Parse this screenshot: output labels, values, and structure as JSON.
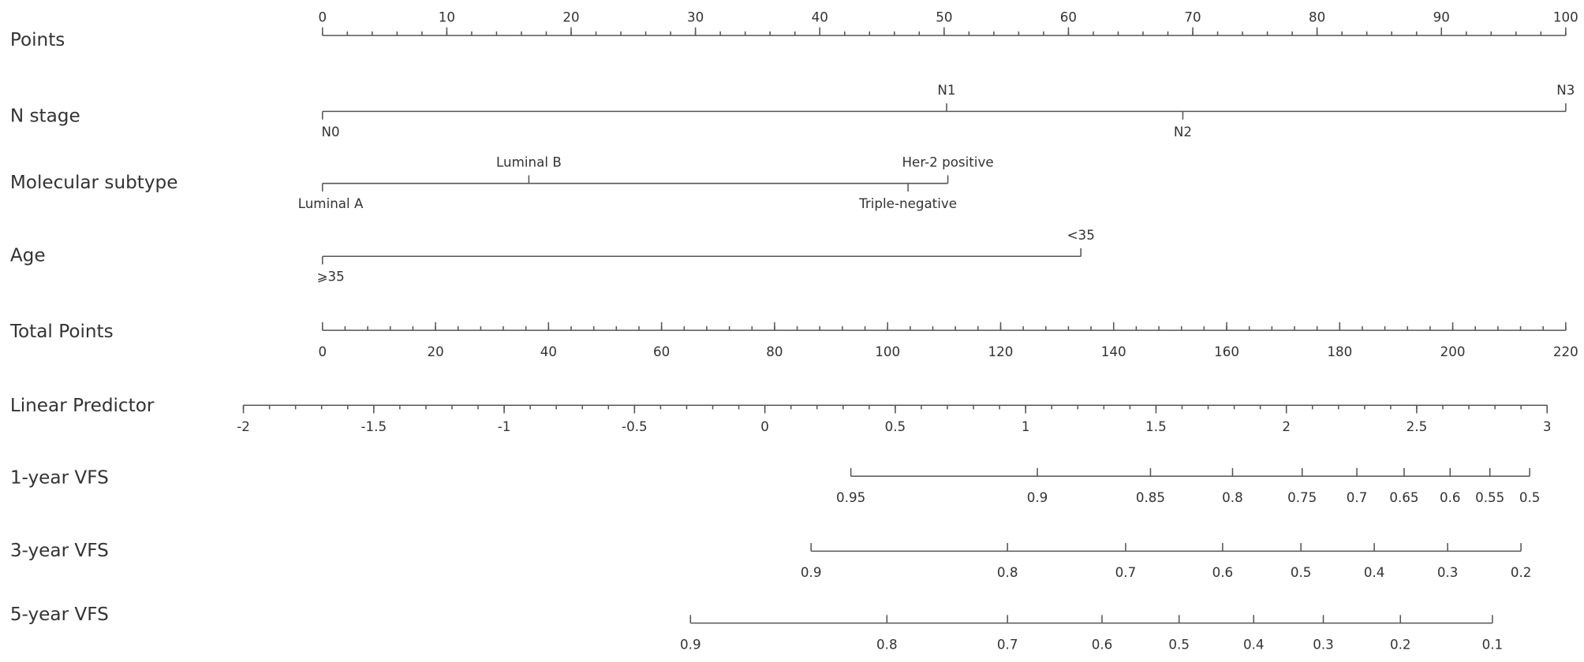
{
  "rows": [
    {
      "label": "Points",
      "ticks": [
        0,
        10,
        20,
        30,
        40,
        50,
        60,
        70,
        80,
        90,
        100
      ],
      "range": [
        0,
        100
      ],
      "points_span": [
        0,
        100
      ],
      "minor_step": 2
    },
    {
      "label": "N stage",
      "levels": [
        {
          "label": "N0",
          "points": 0
        },
        {
          "label": "N1",
          "points": 50.2
        },
        {
          "label": "N2",
          "points": 69.2
        },
        {
          "label": "N3",
          "points": 100
        }
      ]
    },
    {
      "label": "Molecular subtype",
      "levels": [
        {
          "label": "Luminal A",
          "points": 0
        },
        {
          "label": "Luminal B",
          "points": 16.6
        },
        {
          "label": "Triple-negative",
          "points": 47.1
        },
        {
          "label": "Her-2 positive",
          "points": 50.3
        }
      ]
    },
    {
      "label": "Age",
      "levels": [
        {
          "label": "⩾35",
          "points": 0
        },
        {
          "label": "<35",
          "points": 61.0
        }
      ]
    },
    {
      "label": "Total Points",
      "ticks": [
        0,
        20,
        40,
        60,
        80,
        100,
        120,
        140,
        160,
        180,
        200,
        220
      ],
      "range": [
        0,
        220
      ],
      "points_span": [
        0,
        100
      ],
      "minor_step": 4
    },
    {
      "label": "Linear Predictor",
      "ticks": [
        -2,
        -1.5,
        -1,
        -0.5,
        0,
        0.5,
        1,
        1.5,
        2,
        2.5,
        3
      ],
      "range": [
        -2,
        3
      ],
      "points_span": [
        -6.36,
        98.5
      ],
      "minor_step": 0.1
    },
    {
      "label": "1-year VFS",
      "ticks": [
        {
          "label": "0.95",
          "points": 42.5
        },
        {
          "label": "0.9",
          "points": 57.5
        },
        {
          "label": "0.85",
          "points": 66.6
        },
        {
          "label": "0.8",
          "points": 73.2
        },
        {
          "label": "0.75",
          "points": 78.8
        },
        {
          "label": "0.7",
          "points": 83.2
        },
        {
          "label": "0.65",
          "points": 87.0
        },
        {
          "label": "0.6",
          "points": 90.7
        },
        {
          "label": "0.55",
          "points": 93.9
        },
        {
          "label": "0.5",
          "points": 97.1
        }
      ]
    },
    {
      "label": "3-year VFS",
      "ticks": [
        {
          "label": "0.9",
          "points": 39.3
        },
        {
          "label": "0.8",
          "points": 55.1
        },
        {
          "label": "0.7",
          "points": 64.6
        },
        {
          "label": "0.6",
          "points": 72.4
        },
        {
          "label": "0.5",
          "points": 78.7
        },
        {
          "label": "0.4",
          "points": 84.6
        },
        {
          "label": "0.3",
          "points": 90.5
        },
        {
          "label": "0.2",
          "points": 96.4
        }
      ]
    },
    {
      "label": "5-year VFS",
      "ticks": [
        {
          "label": "0.9",
          "points": 29.6
        },
        {
          "label": "0.8",
          "points": 45.4
        },
        {
          "label": "0.7",
          "points": 55.1
        },
        {
          "label": "0.6",
          "points": 62.7
        },
        {
          "label": "0.5",
          "points": 68.9
        },
        {
          "label": "0.4",
          "points": 74.9
        },
        {
          "label": "0.3",
          "points": 80.5
        },
        {
          "label": "0.2",
          "points": 86.7
        },
        {
          "label": "0.1",
          "points": 94.1
        }
      ]
    }
  ]
}
